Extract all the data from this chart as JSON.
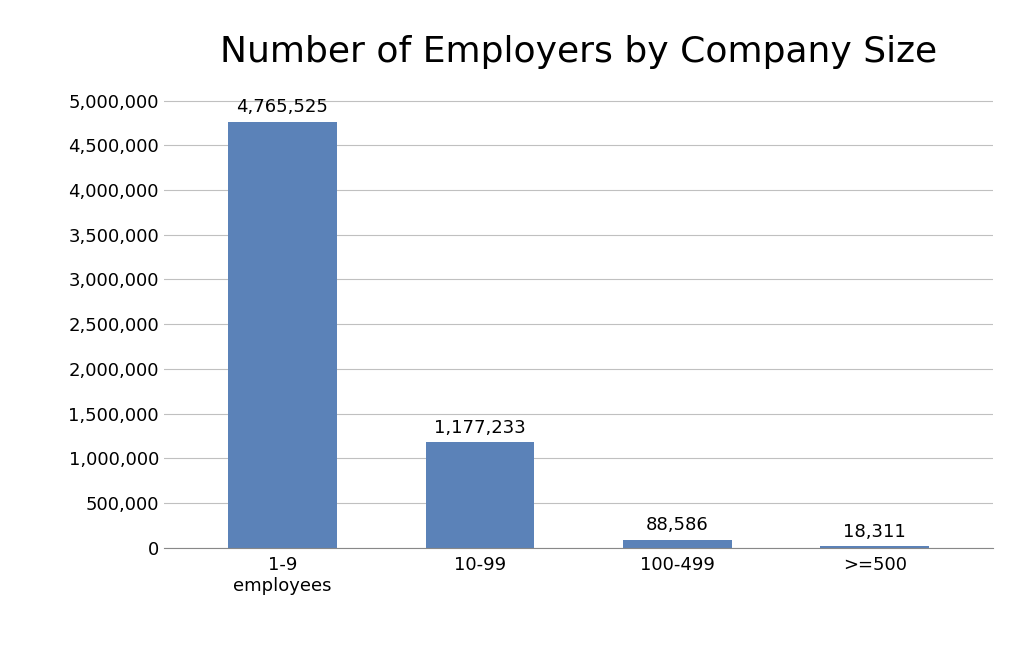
{
  "title": "Number of Employers by Company Size",
  "categories": [
    "1-9\nemployees",
    "10-99",
    "100-499",
    ">=500"
  ],
  "values": [
    4765525,
    1177233,
    88586,
    18311
  ],
  "bar_labels": [
    "4,765,525",
    "1,177,233",
    "88,586",
    "18,311"
  ],
  "bar_color": "#5b82b8",
  "ylim": [
    0,
    5250000
  ],
  "yticks": [
    0,
    500000,
    1000000,
    1500000,
    2000000,
    2500000,
    3000000,
    3500000,
    4000000,
    4500000,
    5000000
  ],
  "background_color": "#ffffff",
  "title_fontsize": 26,
  "tick_fontsize": 13,
  "label_fontsize": 13,
  "bar_width": 0.55
}
